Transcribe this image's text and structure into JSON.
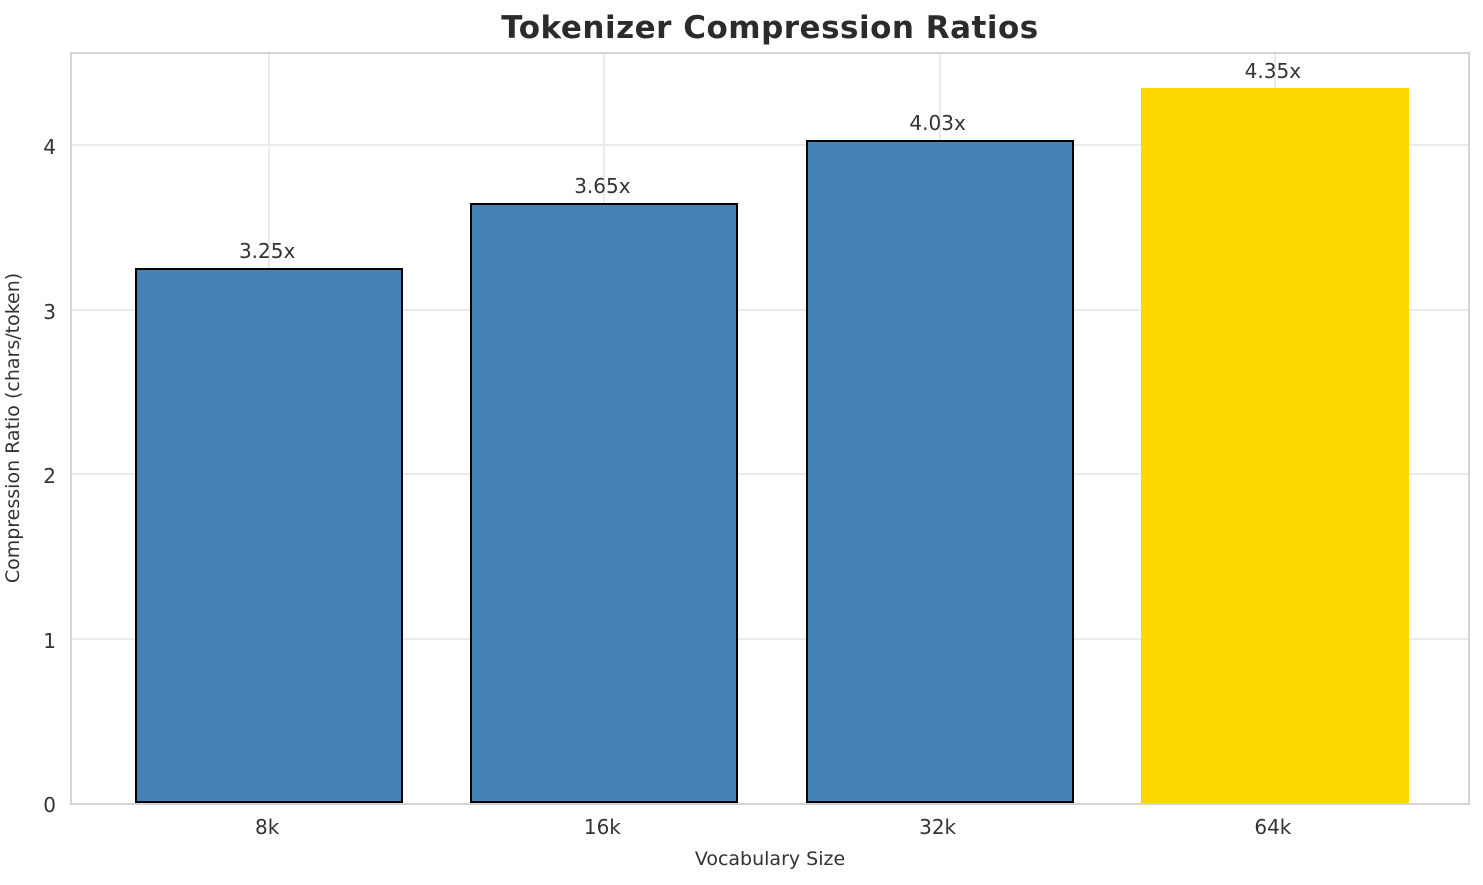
{
  "title": "Tokenizer Compression Ratios",
  "chart_data": {
    "type": "bar",
    "title": "Tokenizer Compression Ratios",
    "xlabel": "Vocabulary Size",
    "ylabel": "Compression Ratio (chars/token)",
    "categories": [
      "8k",
      "16k",
      "32k",
      "64k"
    ],
    "values": [
      3.25,
      3.65,
      4.03,
      4.35
    ],
    "bar_labels": [
      "3.25x",
      "3.65x",
      "4.03x",
      "4.35x"
    ],
    "bar_colors": [
      "#4682B4",
      "#4682B4",
      "#4682B4",
      "#FFD700"
    ],
    "bar_edge_colors": [
      "#000000",
      "#000000",
      "#000000",
      "#FFD700"
    ],
    "yticks": [
      0,
      1,
      2,
      3,
      4
    ],
    "ytick_labels": [
      "0",
      "1",
      "2",
      "3",
      "4"
    ],
    "ylim": [
      0,
      4.578
    ],
    "grid": true,
    "legend_position": "none",
    "background_color": "#ffffff",
    "grid_color": "#ebebeb",
    "base_color": "#4682B4",
    "highlight_color": "#FFD700",
    "text_color": "#333333"
  }
}
